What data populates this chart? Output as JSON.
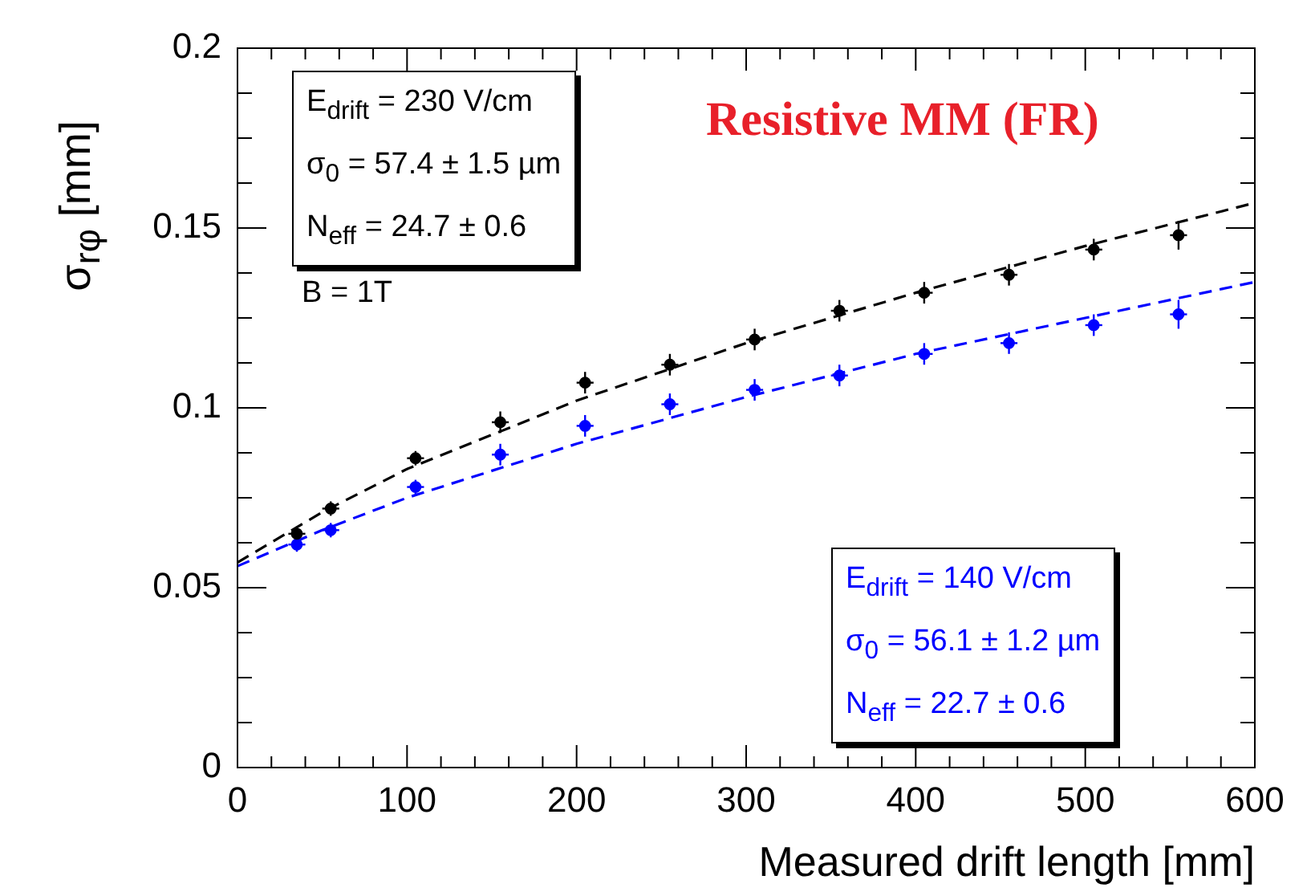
{
  "chart_data": {
    "type": "scatter",
    "xlabel": "Measured drift length [mm]",
    "ylabel": "σ$_{rφ}$ [mm]",
    "xlim": [
      0,
      600
    ],
    "xticks": [
      0,
      100,
      200,
      300,
      400,
      500,
      600
    ],
    "ylim": [
      0,
      0.2
    ],
    "yticks": [
      0,
      0.05,
      0.1,
      0.15,
      0.2
    ],
    "grid": false,
    "legend": false,
    "marker": "circle",
    "series": [
      {
        "color": "#000000",
        "x": [
          35,
          55,
          105,
          155,
          205,
          255,
          305,
          355,
          405,
          455,
          505,
          555
        ],
        "values": [
          0.065,
          0.072,
          0.086,
          0.096,
          0.107,
          0.112,
          0.119,
          0.127,
          0.132,
          0.137,
          0.144,
          0.148
        ],
        "errors": [
          0.002,
          0.002,
          0.002,
          0.003,
          0.003,
          0.003,
          0.003,
          0.003,
          0.003,
          0.003,
          0.003,
          0.004
        ],
        "xerrors": [
          5,
          5,
          5,
          5,
          5,
          5,
          5,
          5,
          5,
          5,
          5,
          5
        ]
      },
      {
        "color": "#0000ff",
        "x": [
          35,
          55,
          105,
          155,
          205,
          255,
          305,
          355,
          405,
          455,
          505,
          555
        ],
        "values": [
          0.062,
          0.066,
          0.078,
          0.087,
          0.095,
          0.101,
          0.105,
          0.109,
          0.115,
          0.118,
          0.123,
          0.126
        ],
        "errors": [
          0.002,
          0.002,
          0.002,
          0.003,
          0.003,
          0.003,
          0.003,
          0.003,
          0.003,
          0.003,
          0.003,
          0.004
        ],
        "xerrors": [
          5,
          5,
          5,
          5,
          5,
          5,
          5,
          5,
          5,
          5,
          5,
          5
        ]
      },
      {
        "type": "line",
        "color": "#000000",
        "line_style": "dashed",
        "marker": "none",
        "x": [
          0,
          50,
          100,
          200,
          300,
          400,
          500,
          600
        ],
        "values": [
          0.057,
          0.071,
          0.083,
          0.102,
          0.118,
          0.132,
          0.145,
          0.157
        ]
      },
      {
        "type": "line",
        "color": "#0000ff",
        "line_style": "dashed",
        "marker": "none",
        "x": [
          0,
          50,
          100,
          200,
          300,
          400,
          500,
          600
        ],
        "values": [
          0.056,
          0.066,
          0.075,
          0.09,
          0.103,
          0.115,
          0.125,
          0.135
        ]
      }
    ],
    "annotations": [
      "E$_{drift}$ = 230 V/cm",
      "σ$_{0}$  = 57.4 ± 1.5 µm",
      "N$_{eff}$ = 24.7 ± 0.6",
      "B = 1T",
      "Resistive MM (FR)",
      "E$_{drift}$ = 140 V/cm",
      "σ$_{0}$  = 56.1 ± 1.2 µm",
      "N$_{eff}$ = 22.7 ± 0.6"
    ]
  }
}
